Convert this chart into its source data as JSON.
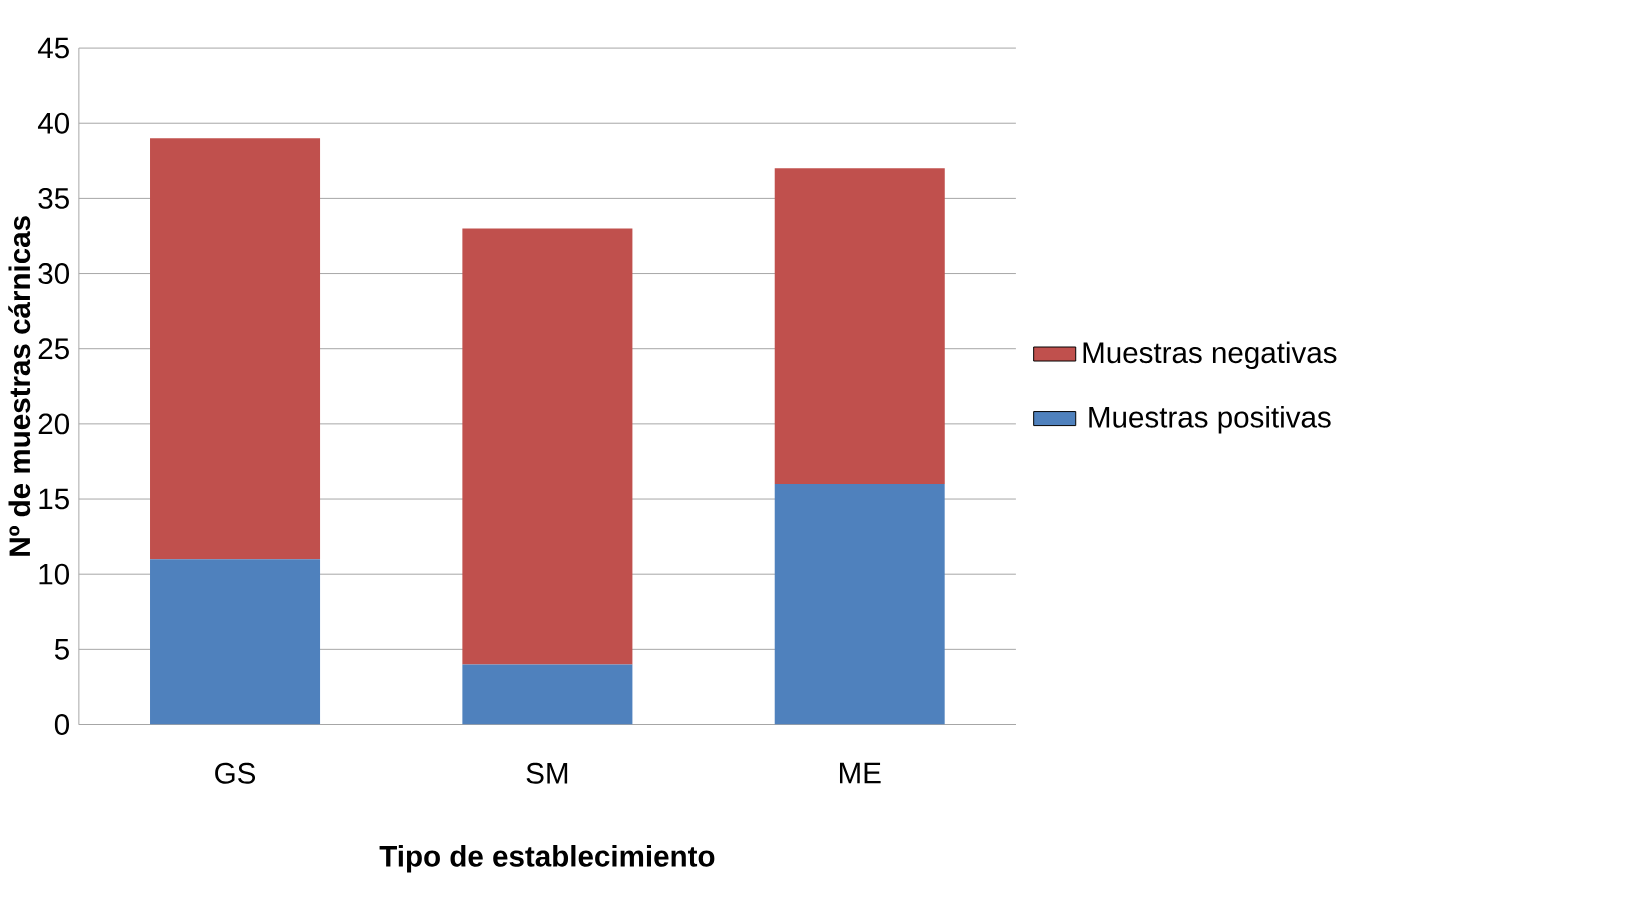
{
  "chart_data": {
    "type": "bar",
    "stacked": true,
    "xlabel": "Tipo de establecimiento",
    "ylabel": "Nº de muestras cárnicas",
    "categories": [
      "GS",
      "SM",
      "ME"
    ],
    "series": [
      {
        "name": "Muestras positivas",
        "color": "#4f81bd",
        "values": [
          11,
          4,
          16
        ]
      },
      {
        "name": "Muestras negativas",
        "color": "#c0504d",
        "values": [
          28,
          29,
          21
        ]
      }
    ],
    "ylim": [
      0,
      45
    ],
    "yticks": [
      0,
      5,
      10,
      15,
      20,
      25,
      30,
      35,
      40,
      45
    ],
    "grid": "y",
    "legend": "right"
  }
}
